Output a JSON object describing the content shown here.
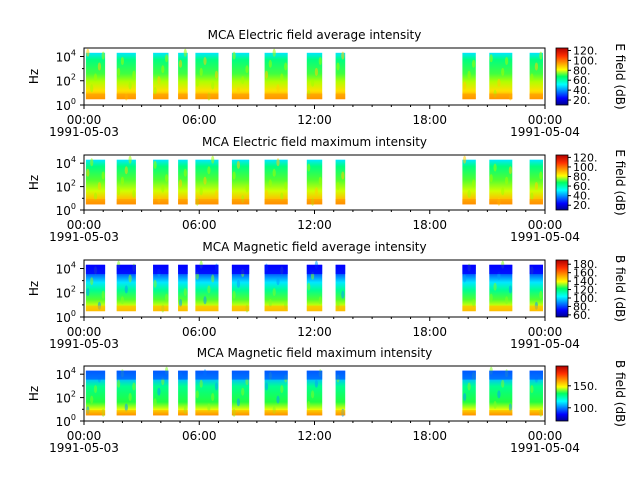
{
  "figure": {
    "panels": [
      {
        "title": "MCA  Electric field average intensity",
        "colorbar_label": "E field (dB)"
      },
      {
        "title": "MCA  Electric field maximum intensity",
        "colorbar_label": "E field (dB)"
      },
      {
        "title": "MCA  Magnetic field average intensity",
        "colorbar_label": "B field (dB)"
      },
      {
        "title": "MCA  Magnetic field maximum intensity",
        "colorbar_label": "B field (dB)"
      }
    ]
  },
  "chart_data": [
    {
      "type": "heatmap",
      "title": "MCA  Electric field average intensity",
      "ylabel": "Hz",
      "y_scale": "log",
      "y_ticks": [
        {
          "exp": 0,
          "label": "10",
          "sup": "0"
        },
        {
          "exp": 2,
          "label": "10",
          "sup": "2"
        },
        {
          "exp": 4,
          "label": "10",
          "sup": "4"
        }
      ],
      "x_ticks": [
        {
          "hour": 0,
          "label": "00:00"
        },
        {
          "hour": 6,
          "label": "06:00"
        },
        {
          "hour": 12,
          "label": "12:00"
        },
        {
          "hour": 18,
          "label": "18:00"
        },
        {
          "hour": 24,
          "label": "00:00"
        }
      ],
      "x_dates": [
        {
          "hour": 0,
          "label": "1991-05-03"
        },
        {
          "hour": 24,
          "label": "1991-05-04"
        }
      ],
      "colorbar": {
        "label": "E field (dB)",
        "range": [
          10,
          125
        ],
        "ticks": [
          {
            "v": 20,
            "label": "20."
          },
          {
            "v": 40,
            "label": "40."
          },
          {
            "v": 60,
            "label": "60."
          },
          {
            "v": 80,
            "label": "80."
          },
          {
            "v": 100,
            "label": "100."
          },
          {
            "v": 120,
            "label": "120."
          }
        ]
      },
      "passes_utc_hours": [
        [
          0.1,
          1.1
        ],
        [
          1.7,
          2.7
        ],
        [
          3.6,
          4.4
        ],
        [
          4.9,
          5.4
        ],
        [
          5.8,
          7.0
        ],
        [
          7.7,
          8.6
        ],
        [
          9.4,
          10.6
        ],
        [
          11.6,
          12.4
        ],
        [
          13.1,
          13.6
        ],
        [
          19.7,
          20.4
        ],
        [
          21.1,
          22.3
        ],
        [
          23.2,
          23.9
        ]
      ],
      "freq_range_hz": [
        3,
        20000
      ]
    },
    {
      "type": "heatmap",
      "title": "MCA  Electric field maximum intensity",
      "ylabel": "Hz",
      "y_scale": "log",
      "y_ticks": [
        {
          "exp": 0,
          "label": "10",
          "sup": "0"
        },
        {
          "exp": 2,
          "label": "10",
          "sup": "2"
        },
        {
          "exp": 4,
          "label": "10",
          "sup": "4"
        }
      ],
      "x_ticks": [
        {
          "hour": 0,
          "label": "00:00"
        },
        {
          "hour": 6,
          "label": "06:00"
        },
        {
          "hour": 12,
          "label": "12:00"
        },
        {
          "hour": 18,
          "label": "18:00"
        },
        {
          "hour": 24,
          "label": "00:00"
        }
      ],
      "x_dates": [
        {
          "hour": 0,
          "label": "1991-05-03"
        },
        {
          "hour": 24,
          "label": "1991-05-04"
        }
      ],
      "colorbar": {
        "label": "E field (dB)",
        "range": [
          10,
          125
        ],
        "ticks": [
          {
            "v": 20,
            "label": "20."
          },
          {
            "v": 40,
            "label": "40."
          },
          {
            "v": 60,
            "label": "60."
          },
          {
            "v": 80,
            "label": "80."
          },
          {
            "v": 100,
            "label": "100."
          },
          {
            "v": 120,
            "label": "120."
          }
        ]
      },
      "passes_utc_hours": [
        [
          0.1,
          1.1
        ],
        [
          1.7,
          2.7
        ],
        [
          3.6,
          4.4
        ],
        [
          4.9,
          5.4
        ],
        [
          5.8,
          7.0
        ],
        [
          7.7,
          8.6
        ],
        [
          9.4,
          10.6
        ],
        [
          11.6,
          12.4
        ],
        [
          13.1,
          13.6
        ],
        [
          19.7,
          20.4
        ],
        [
          21.1,
          22.3
        ],
        [
          23.2,
          23.9
        ]
      ],
      "freq_range_hz": [
        3,
        20000
      ]
    },
    {
      "type": "heatmap",
      "title": "MCA  Magnetic field average intensity",
      "ylabel": "Hz",
      "y_scale": "log",
      "y_ticks": [
        {
          "exp": 0,
          "label": "10",
          "sup": "0"
        },
        {
          "exp": 2,
          "label": "10",
          "sup": "2"
        },
        {
          "exp": 4,
          "label": "10",
          "sup": "4"
        }
      ],
      "x_ticks": [
        {
          "hour": 0,
          "label": "00:00"
        },
        {
          "hour": 6,
          "label": "06:00"
        },
        {
          "hour": 12,
          "label": "12:00"
        },
        {
          "hour": 18,
          "label": "18:00"
        },
        {
          "hour": 24,
          "label": "00:00"
        }
      ],
      "x_dates": [
        {
          "hour": 0,
          "label": "1991-05-03"
        },
        {
          "hour": 24,
          "label": "1991-05-04"
        }
      ],
      "colorbar": {
        "label": "B field (dB)",
        "range": [
          55,
          190
        ],
        "ticks": [
          {
            "v": 60,
            "label": "60."
          },
          {
            "v": 80,
            "label": "80."
          },
          {
            "v": 100,
            "label": "100."
          },
          {
            "v": 120,
            "label": "120."
          },
          {
            "v": 140,
            "label": "140."
          },
          {
            "v": 160,
            "label": "160."
          },
          {
            "v": 180,
            "label": "180."
          }
        ]
      },
      "passes_utc_hours": [
        [
          0.1,
          1.1
        ],
        [
          1.7,
          2.7
        ],
        [
          3.6,
          4.4
        ],
        [
          4.9,
          5.4
        ],
        [
          5.8,
          7.0
        ],
        [
          7.7,
          8.6
        ],
        [
          9.4,
          10.6
        ],
        [
          11.6,
          12.4
        ],
        [
          13.1,
          13.6
        ],
        [
          19.7,
          20.4
        ],
        [
          21.1,
          22.3
        ],
        [
          23.2,
          23.9
        ]
      ],
      "freq_range_hz": [
        3,
        20000
      ]
    },
    {
      "type": "heatmap",
      "title": "MCA  Magnetic field maximum intensity",
      "ylabel": "Hz",
      "y_scale": "log",
      "y_ticks": [
        {
          "exp": 0,
          "label": "10",
          "sup": "0"
        },
        {
          "exp": 2,
          "label": "10",
          "sup": "2"
        },
        {
          "exp": 4,
          "label": "10",
          "sup": "4"
        }
      ],
      "x_ticks": [
        {
          "hour": 0,
          "label": "00:00"
        },
        {
          "hour": 6,
          "label": "06:00"
        },
        {
          "hour": 12,
          "label": "12:00"
        },
        {
          "hour": 18,
          "label": "18:00"
        },
        {
          "hour": 24,
          "label": "00:00"
        }
      ],
      "x_dates": [
        {
          "hour": 0,
          "label": "1991-05-03"
        },
        {
          "hour": 24,
          "label": "1991-05-04"
        }
      ],
      "colorbar": {
        "label": "B field (dB)",
        "range": [
          70,
          195
        ],
        "ticks": [
          {
            "v": 100,
            "label": "100."
          },
          {
            "v": 150,
            "label": "150."
          }
        ]
      },
      "passes_utc_hours": [
        [
          0.1,
          1.1
        ],
        [
          1.7,
          2.7
        ],
        [
          3.6,
          4.4
        ],
        [
          4.9,
          5.4
        ],
        [
          5.8,
          7.0
        ],
        [
          7.7,
          8.6
        ],
        [
          9.4,
          10.6
        ],
        [
          11.6,
          12.4
        ],
        [
          13.1,
          13.6
        ],
        [
          19.7,
          20.4
        ],
        [
          21.1,
          22.3
        ],
        [
          23.2,
          23.9
        ]
      ],
      "freq_range_hz": [
        3,
        20000
      ]
    }
  ]
}
